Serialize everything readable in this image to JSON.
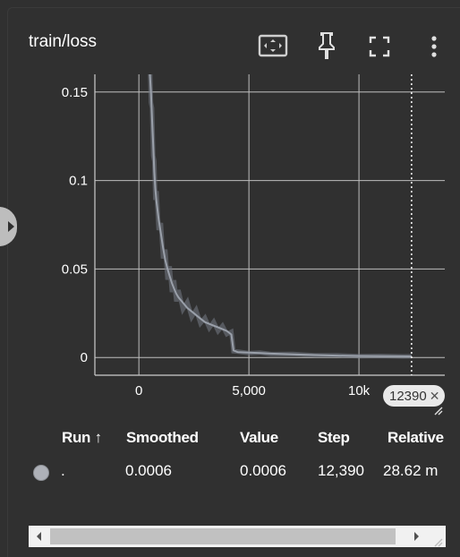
{
  "card": {
    "title": "train/loss",
    "toolbar": {
      "fit_icon": "fit-to-domain-icon",
      "pin_icon": "pin-icon",
      "fullscreen_icon": "fullscreen-icon",
      "more_icon": "more-vert-icon"
    }
  },
  "chart_data": {
    "type": "line",
    "title": "",
    "xlabel": "",
    "ylabel": "",
    "xlim": [
      -2000,
      13900
    ],
    "ylim": [
      -0.01,
      0.16
    ],
    "x_ticks": [
      0,
      5000,
      10000
    ],
    "x_tick_labels": [
      "0",
      "5,000",
      "10k"
    ],
    "y_ticks": [
      0,
      0.05,
      0.1,
      0.15
    ],
    "y_tick_labels": [
      "0",
      "0.05",
      "0.1",
      "0.15"
    ],
    "grid": true,
    "cursor_step": 12390,
    "series": [
      {
        "color": "#9aa0aa",
        "x": [
          500,
          550,
          600,
          650,
          700,
          750,
          800,
          900,
          1000,
          1100,
          1200,
          1300,
          1400,
          1500,
          1600,
          1700,
          1800,
          2000,
          2200,
          2400,
          2600,
          2800,
          3000,
          3200,
          3400,
          3600,
          3800,
          4000,
          4200,
          4300,
          4500,
          5000,
          5500,
          6000,
          7000,
          8000,
          9000,
          10000,
          11000,
          12000,
          12390
        ],
        "y": [
          0.16,
          0.15,
          0.135,
          0.12,
          0.105,
          0.095,
          0.088,
          0.078,
          0.07,
          0.062,
          0.055,
          0.05,
          0.046,
          0.042,
          0.039,
          0.036,
          0.034,
          0.031,
          0.028,
          0.026,
          0.024,
          0.022,
          0.02,
          0.019,
          0.018,
          0.017,
          0.016,
          0.015,
          0.013,
          0.004,
          0.003,
          0.0028,
          0.0025,
          0.0022,
          0.0018,
          0.0014,
          0.0011,
          0.0009,
          0.0008,
          0.0007,
          0.0006
        ]
      }
    ]
  },
  "step_chip": {
    "label": "12390",
    "close": "✕"
  },
  "table": {
    "headers": {
      "run": "Run ↑",
      "smoothed": "Smoothed",
      "value": "Value",
      "step": "Step",
      "relative": "Relative"
    },
    "rows": [
      {
        "swatch_color": "#aeb1b8",
        "run": ".",
        "smoothed": "0.0006",
        "value": "0.0006",
        "step": "12,390",
        "relative": "28.62 m"
      }
    ]
  }
}
